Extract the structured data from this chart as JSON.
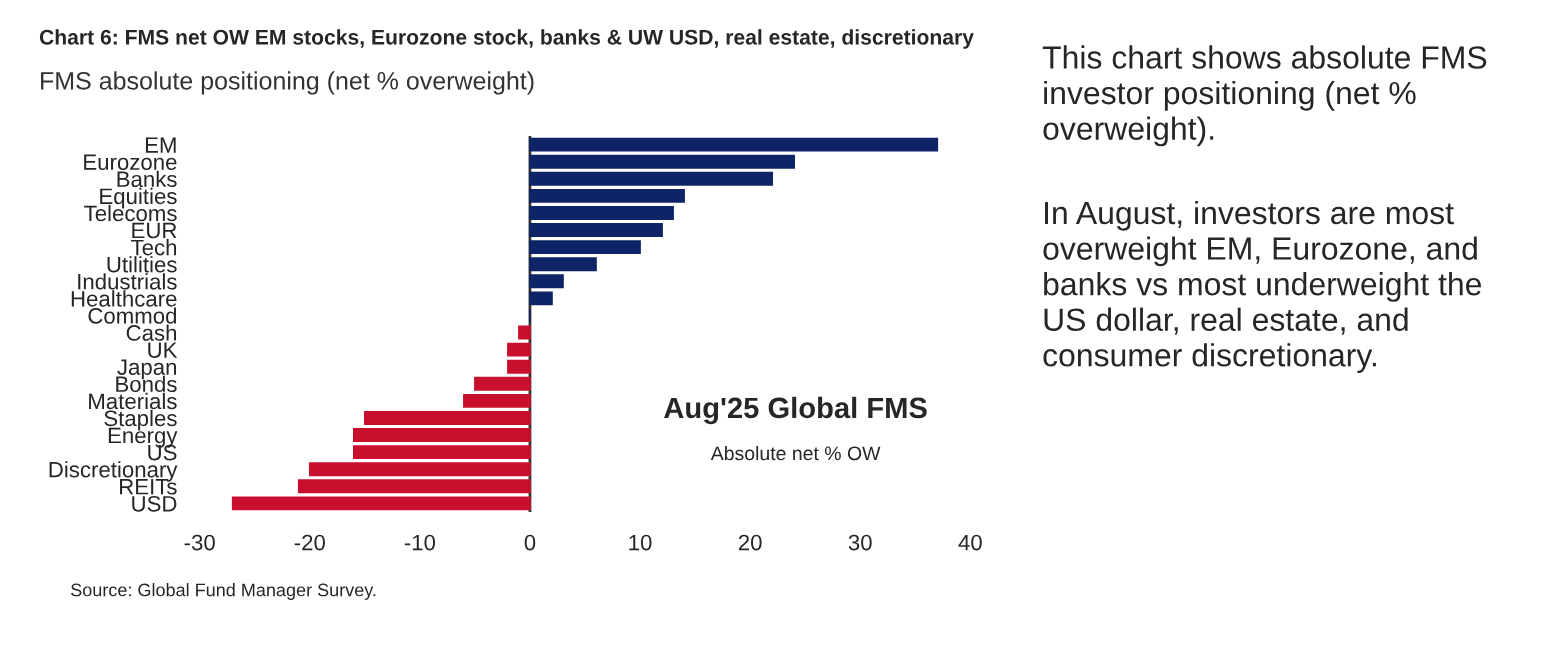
{
  "chart_data": {
    "type": "bar",
    "orientation": "horizontal",
    "title": "Chart 6: FMS net OW EM stocks, Eurozone stock, banks & UW USD, real estate, discretionary",
    "subtitle": "FMS absolute positioning (net % overweight)",
    "categories": [
      "EM",
      "Eurozone",
      "Banks",
      "Equities",
      "Telecoms",
      "EUR",
      "Tech",
      "Utilities",
      "Industrials",
      "Healthcare",
      "Commod",
      "Cash",
      "UK",
      "Japan",
      "Bonds",
      "Materials",
      "Staples",
      "Energy",
      "US",
      "Discretionary",
      "REITs",
      "USD"
    ],
    "values": [
      37,
      24,
      22,
      14,
      13,
      12,
      10,
      6,
      3,
      2,
      0,
      -1,
      -2,
      -2,
      -5,
      -6,
      -15,
      -16,
      -16,
      -20,
      -21,
      -27
    ],
    "colors": [
      "#0e2466",
      "#0e2466",
      "#0e2466",
      "#0e2466",
      "#0e2466",
      "#0e2466",
      "#0e2466",
      "#0e2466",
      "#0e2466",
      "#0e2466",
      "#0e2466",
      "#c8102e",
      "#c8102e",
      "#c8102e",
      "#c8102e",
      "#c8102e",
      "#c8102e",
      "#c8102e",
      "#c8102e",
      "#c8102e",
      "#c8102e",
      "#c8102e"
    ],
    "xlim": [
      -30,
      40
    ],
    "xticks": [
      -30,
      -20,
      -10,
      0,
      10,
      20,
      30,
      40
    ],
    "ref_lines": [
      {
        "axis": "x",
        "value": 0,
        "color": "#333333"
      }
    ],
    "annotations": [
      "Aug'25 Global FMS",
      "Absolute net % OW",
      "Source: Global Fund Manager Survey.",
      "This chart shows absolute FMS investor positioning (net % overweight).",
      "In August, investors are most overweight EM, Eurozone, and banks vs most underweight the US dollar, real estate, and consumer discretionary."
    ],
    "grid": false,
    "legend": false
  }
}
